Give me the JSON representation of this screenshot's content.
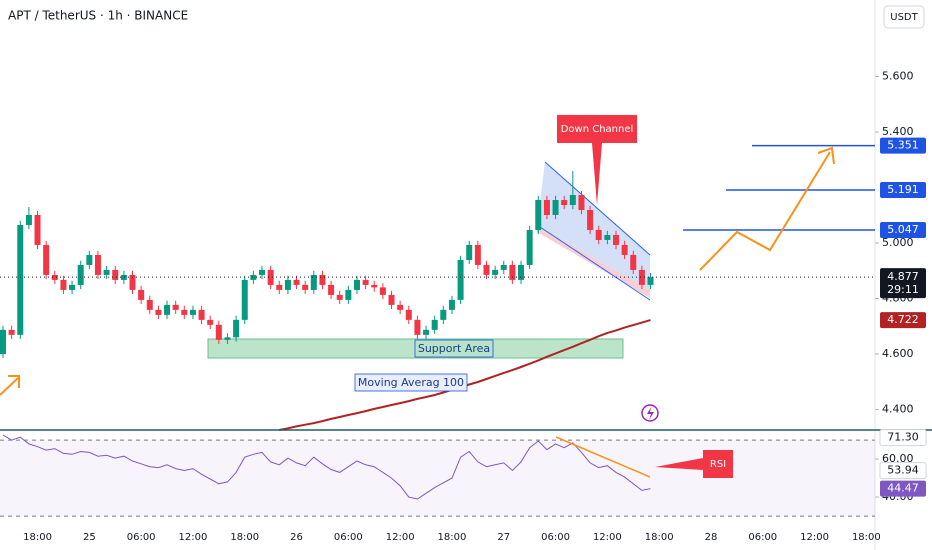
{
  "header": {
    "symbol": "APT / TetherUS · 1h · BINANCE",
    "currency": "USDT"
  },
  "chart_data": {
    "type": "candlestick",
    "categories": [
      null,
      null,
      null,
      null,
      "18:00",
      null,
      null,
      null,
      null,
      null,
      "25",
      null,
      null,
      null,
      null,
      null,
      "06:00",
      null,
      null,
      null,
      null,
      null,
      "12:00",
      null,
      null,
      null,
      null,
      null,
      "18:00",
      null,
      null,
      null,
      null,
      null,
      "26",
      null,
      null,
      null,
      null,
      null,
      "06:00",
      null,
      null,
      null,
      null,
      null,
      "12:00",
      null,
      null,
      null,
      null,
      null,
      "18:00",
      null,
      null,
      null,
      null,
      null,
      "27",
      null,
      null,
      null,
      null,
      null,
      "06:00",
      null,
      null,
      null,
      null,
      null,
      "12:00",
      null,
      null,
      null,
      null,
      null,
      "18:00",
      null,
      null,
      null,
      null,
      null,
      "28",
      null,
      null,
      null,
      null,
      null,
      "06:00",
      null,
      null,
      null,
      null,
      null,
      "12:00",
      null,
      null,
      null,
      null,
      null,
      "18:00",
      null
    ],
    "open": [
      4.6,
      4.687,
      4.669,
      5.065,
      5.101,
      4.993,
      4.885,
      4.867,
      4.831,
      4.849,
      4.921,
      4.957,
      4.885,
      4.903,
      4.867,
      4.885,
      4.831,
      4.795,
      4.759,
      4.741,
      4.777,
      4.759,
      4.741,
      4.759,
      4.723,
      4.705,
      4.651,
      4.66,
      4.723,
      4.867,
      4.885,
      4.903,
      4.849,
      4.831,
      4.867,
      4.849,
      4.831,
      4.885,
      4.849,
      4.813,
      4.795,
      4.831,
      4.867,
      4.849,
      4.84,
      4.813,
      4.777,
      4.759,
      4.723,
      4.669,
      4.687,
      4.723,
      4.759,
      4.795,
      4.939,
      4.993,
      4.921,
      4.885,
      4.903,
      4.921,
      4.867,
      4.921,
      5.047,
      5.155,
      5.101,
      5.155,
      5.137,
      5.173,
      5.119,
      5.047,
      5.011,
      5.029,
      4.993,
      4.957,
      4.903,
      4.849,
      null,
      null,
      null,
      null,
      null,
      null,
      null,
      null,
      null,
      null,
      null,
      null,
      null,
      null,
      null,
      null,
      null,
      null,
      null,
      null,
      null,
      null,
      null,
      null,
      null,
      null
    ],
    "high": [
      4.702,
      4.702,
      5.08,
      5.13,
      5.116,
      5.008,
      4.9,
      4.882,
      4.864,
      4.936,
      4.972,
      4.972,
      4.918,
      4.918,
      4.9,
      4.9,
      4.846,
      4.81,
      4.774,
      4.792,
      4.792,
      4.774,
      4.774,
      4.774,
      4.738,
      4.72,
      4.675,
      4.738,
      4.882,
      4.9,
      4.918,
      4.918,
      4.864,
      4.882,
      4.882,
      4.864,
      4.9,
      4.9,
      4.864,
      4.828,
      4.846,
      4.882,
      4.882,
      4.864,
      4.855,
      4.828,
      4.792,
      4.774,
      4.738,
      4.702,
      4.738,
      4.774,
      4.81,
      4.954,
      5.008,
      5.008,
      4.936,
      4.918,
      4.936,
      4.936,
      4.936,
      5.062,
      5.17,
      5.17,
      5.17,
      5.17,
      5.26,
      5.188,
      5.134,
      5.062,
      5.044,
      5.044,
      5.008,
      4.972,
      4.918,
      4.892,
      null,
      null,
      null,
      null,
      null,
      null,
      null,
      null,
      null,
      null,
      null,
      null,
      null,
      null,
      null,
      null,
      null,
      null,
      null,
      null,
      null,
      null,
      null,
      null,
      null,
      null
    ],
    "low": [
      4.585,
      4.654,
      4.654,
      5.05,
      4.978,
      4.87,
      4.852,
      4.816,
      4.816,
      4.834,
      4.906,
      4.87,
      4.87,
      4.852,
      4.852,
      4.816,
      4.78,
      4.744,
      4.726,
      4.726,
      4.744,
      4.726,
      4.726,
      4.708,
      4.69,
      4.636,
      4.636,
      4.645,
      4.708,
      4.852,
      4.87,
      4.834,
      4.816,
      4.816,
      4.834,
      4.816,
      4.816,
      4.834,
      4.798,
      4.78,
      4.78,
      4.816,
      4.834,
      4.825,
      4.798,
      4.762,
      4.744,
      4.708,
      4.654,
      4.654,
      4.672,
      4.708,
      4.744,
      4.78,
      4.924,
      4.906,
      4.87,
      4.87,
      4.888,
      4.852,
      4.852,
      4.906,
      5.032,
      5.086,
      5.086,
      5.122,
      5.122,
      5.104,
      5.032,
      4.996,
      4.996,
      4.978,
      4.942,
      4.888,
      4.834,
      4.834,
      null,
      null,
      null,
      null,
      null,
      null,
      null,
      null,
      null,
      null,
      null,
      null,
      null,
      null,
      null,
      null,
      null,
      null,
      null,
      null,
      null,
      null,
      null,
      null,
      null,
      null
    ],
    "close": [
      4.687,
      4.669,
      5.065,
      5.101,
      4.993,
      4.885,
      4.867,
      4.831,
      4.849,
      4.921,
      4.957,
      4.885,
      4.903,
      4.867,
      4.885,
      4.831,
      4.795,
      4.759,
      4.741,
      4.777,
      4.759,
      4.741,
      4.759,
      4.723,
      4.705,
      4.651,
      4.66,
      4.723,
      4.867,
      4.885,
      4.903,
      4.849,
      4.831,
      4.867,
      4.849,
      4.831,
      4.885,
      4.849,
      4.813,
      4.795,
      4.831,
      4.867,
      4.849,
      4.84,
      4.813,
      4.777,
      4.759,
      4.723,
      4.669,
      4.687,
      4.723,
      4.759,
      4.795,
      4.939,
      4.993,
      4.921,
      4.885,
      4.903,
      4.921,
      4.867,
      4.921,
      5.047,
      5.155,
      5.101,
      5.155,
      5.137,
      5.173,
      5.119,
      5.047,
      5.011,
      5.029,
      4.993,
      4.957,
      4.903,
      4.849,
      4.877,
      null,
      null,
      null,
      null,
      null,
      null,
      null,
      null,
      null,
      null,
      null,
      null,
      null,
      null,
      null,
      null,
      null,
      null,
      null,
      null,
      null,
      null,
      null,
      null,
      null,
      null
    ],
    "up_color": "#089981",
    "down_color": "#f23645",
    "ylim": [
      4.326,
      5.876
    ],
    "yticks": [
      {
        "value": 4.4,
        "label": "4.400"
      },
      {
        "value": 4.6,
        "label": "4.600"
      },
      {
        "value": 4.8,
        "label": "4.800"
      },
      {
        "value": 5.0,
        "label": "5.000"
      },
      {
        "value": 5.4,
        "label": "5.400"
      },
      {
        "value": 5.6,
        "label": "5.600"
      }
    ],
    "series": [
      {
        "name": "Moving Averag 100",
        "color": "#b22222",
        "values": [
          null,
          null,
          null,
          null,
          null,
          null,
          null,
          null,
          null,
          null,
          null,
          null,
          null,
          null,
          null,
          null,
          null,
          null,
          null,
          null,
          null,
          null,
          null,
          null,
          null,
          null,
          null,
          null,
          null,
          null,
          null,
          null,
          4.326,
          4.332,
          4.339,
          4.345,
          4.351,
          4.358,
          4.366,
          4.373,
          4.38,
          4.387,
          4.394,
          4.402,
          4.409,
          4.416,
          4.423,
          4.43,
          4.438,
          4.445,
          4.452,
          4.461,
          4.471,
          4.48,
          4.49,
          4.499,
          4.51,
          4.521,
          4.532,
          4.542,
          4.553,
          4.565,
          4.577,
          4.59,
          4.602,
          4.614,
          4.626,
          4.639,
          4.651,
          4.664,
          4.676,
          4.685,
          4.695,
          4.704,
          4.713,
          4.722,
          null,
          null,
          null,
          null,
          null,
          null,
          null,
          null,
          null,
          null,
          null,
          null,
          null,
          null,
          null,
          null,
          null,
          null,
          null,
          null,
          null,
          null,
          null,
          null,
          null,
          null
        ]
      }
    ],
    "ma_tag": {
      "value": 4.722,
      "label": "4.722"
    },
    "levels": [
      {
        "value": 5.351,
        "label": "5.351"
      },
      {
        "value": 5.191,
        "label": "5.191"
      },
      {
        "value": 5.047,
        "label": "5.047"
      }
    ],
    "level_color": "#1e53e5",
    "last_price": {
      "value": 4.877,
      "label": "4.877"
    },
    "countdown": "29:11",
    "annotations": {
      "channel": "Down Channel",
      "support": "Support Area",
      "ma": "Moving Averag 100",
      "rsi": "RSI"
    },
    "rsi": {
      "color": "#7e57c2",
      "values": [
        72.6,
        70.0,
        71.5,
        68.0,
        66.5,
        64.7,
        65.5,
        63.0,
        62.5,
        64.0,
        63.5,
        61.5,
        62.0,
        60.5,
        61.5,
        59.0,
        57.5,
        56.0,
        55.5,
        57.0,
        55.0,
        54.0,
        55.0,
        52.0,
        49.5,
        47.0,
        48.0,
        53.0,
        61.0,
        62.5,
        63.5,
        58.5,
        57.0,
        60.5,
        58.0,
        56.5,
        61.0,
        57.5,
        54.5,
        53.0,
        56.0,
        59.0,
        57.0,
        56.0,
        53.0,
        50.0,
        46.0,
        40.0,
        39.0,
        42.0,
        45.0,
        47.5,
        50.0,
        61.0,
        64.0,
        58.5,
        56.0,
        57.0,
        58.0,
        54.0,
        58.5,
        66.0,
        69.5,
        65.0,
        68.0,
        66.0,
        68.5,
        63.5,
        58.0,
        55.5,
        56.5,
        53.0,
        50.5,
        47.0,
        43.5,
        44.47,
        null,
        null,
        null,
        null,
        null,
        null,
        null,
        null,
        null,
        null,
        null,
        null,
        null,
        null,
        null,
        null,
        null,
        null,
        null,
        null,
        null,
        null,
        null,
        null,
        null,
        null
      ],
      "ylim": [
        25.3,
        75.3
      ],
      "yticks": [
        {
          "value": 40,
          "label": "40.00"
        },
        {
          "value": 60,
          "label": "60.00"
        }
      ],
      "bands": [
        70,
        30
      ],
      "tags": [
        {
          "value": 71.3,
          "label": "71.30"
        },
        {
          "value": 53.94,
          "label": "53.94"
        },
        {
          "value": 44.47,
          "label": "44.47"
        }
      ]
    }
  }
}
